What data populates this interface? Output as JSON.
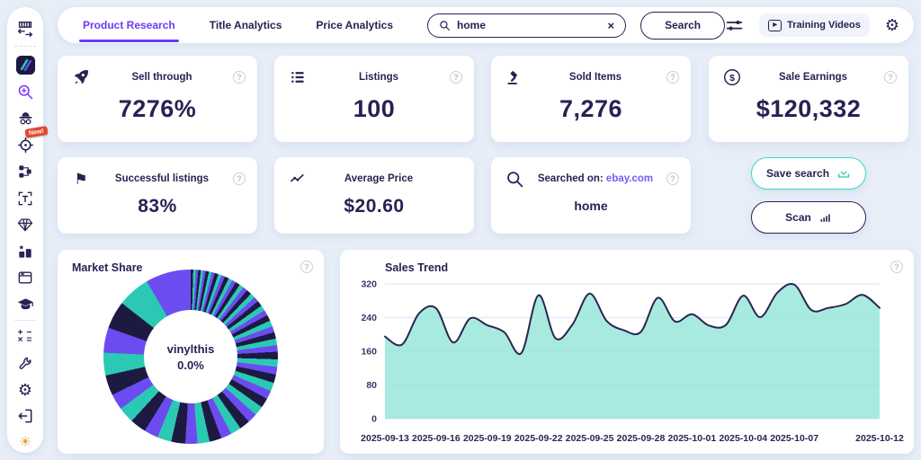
{
  "app": {
    "colors": {
      "background": "#E7EEF8",
      "navy": "#262353",
      "purple_accent": "#6C3BF5",
      "teal_accent": "#2BC9B4",
      "badge_red": "#E2492F",
      "link_purple": "#7A5AF8"
    }
  },
  "sidebar": {
    "new_badge": "New!",
    "items": [
      {
        "icon": "storefront-expand-icon"
      },
      {
        "icon": "zik-logo"
      },
      {
        "icon": "product-research-icon"
      },
      {
        "icon": "competitor-research-icon"
      },
      {
        "icon": "target-icon",
        "badge": "New!"
      },
      {
        "icon": "category-flow-icon"
      },
      {
        "icon": "title-builder-icon"
      },
      {
        "icon": "gem-icon"
      },
      {
        "icon": "best-sellers-icon"
      },
      {
        "icon": "browser-icon"
      },
      {
        "icon": "academy-icon"
      },
      {
        "icon": "calculator-icon"
      },
      {
        "icon": "tools-icon"
      },
      {
        "icon": "settings-icon"
      },
      {
        "icon": "logout-icon"
      },
      {
        "icon": "theme-sun-icon"
      }
    ]
  },
  "topbar": {
    "tabs": [
      {
        "label": "Product Research",
        "active": true
      },
      {
        "label": "Title Analytics",
        "active": false
      },
      {
        "label": "Price Analytics",
        "active": false
      }
    ],
    "search": {
      "value": "home"
    },
    "search_button": "Search",
    "training_videos": "Training Videos"
  },
  "stats": [
    {
      "icon": "rocket-icon",
      "title": "Sell through",
      "value": "7276%",
      "help": true
    },
    {
      "icon": "listings-icon",
      "title": "Listings",
      "value": "100",
      "help": true
    },
    {
      "icon": "gavel-icon",
      "title": "Sold Items",
      "value": "7,276",
      "help": true
    },
    {
      "icon": "dollar-icon",
      "title": "Sale Earnings",
      "value": "$120,332",
      "help": true
    },
    {
      "icon": "flag-icon",
      "title": "Successful listings",
      "value": "83%",
      "help": true
    },
    {
      "icon": "trend-icon",
      "title": "Average Price",
      "value": "$20.60",
      "help": false
    },
    {
      "icon": "magnifier-icon",
      "title": "Searched on:",
      "link": "ebay.com",
      "value": "home",
      "help": true
    }
  ],
  "actions": {
    "save_search": "Save search",
    "scan": "Scan"
  },
  "chart_data": [
    {
      "type": "pie",
      "subtype": "donut",
      "title": "Market Share",
      "center_label": "vinylthis",
      "center_value": "0.0%",
      "palette": [
        "#1D1A42",
        "#2BC9B4",
        "#6C4CF1"
      ],
      "segments": [
        0.5,
        0.5,
        0.5,
        0.5,
        0.5,
        0.5,
        0.6,
        0.6,
        0.6,
        0.7,
        0.7,
        0.7,
        0.8,
        0.8,
        0.8,
        0.9,
        0.9,
        0.9,
        1.0,
        1.0,
        1.0,
        1.1,
        1.1,
        1.1,
        1.2,
        1.2,
        1.2,
        1.3,
        1.3,
        1.3,
        1.5,
        1.5,
        1.5,
        1.7,
        1.7,
        1.7,
        1.9,
        1.9,
        1.9,
        2.1,
        2.1,
        2.1,
        2.4,
        2.4,
        2.4,
        2.8,
        2.8,
        2.8,
        3.2,
        3.2,
        3.2,
        4.0,
        4.5,
        5.0,
        5.5,
        6.5,
        9.0
      ]
    },
    {
      "type": "area",
      "title": "Sales Trend",
      "x": [
        "2025-09-13",
        "2025-09-14",
        "2025-09-15",
        "2025-09-16",
        "2025-09-17",
        "2025-09-18",
        "2025-09-19",
        "2025-09-20",
        "2025-09-21",
        "2025-09-22",
        "2025-09-23",
        "2025-09-24",
        "2025-09-25",
        "2025-09-26",
        "2025-09-27",
        "2025-09-28",
        "2025-09-29",
        "2025-09-30",
        "2025-10-01",
        "2025-10-02",
        "2025-10-03",
        "2025-10-04",
        "2025-10-05",
        "2025-10-06",
        "2025-10-07",
        "2025-10-08",
        "2025-10-09",
        "2025-10-10",
        "2025-10-11",
        "2025-10-12"
      ],
      "values": [
        195,
        176,
        250,
        262,
        181,
        238,
        222,
        205,
        156,
        293,
        191,
        224,
        297,
        232,
        210,
        206,
        287,
        231,
        248,
        221,
        223,
        292,
        241,
        299,
        318,
        258,
        263,
        272,
        294,
        263
      ],
      "x_tick_labels": [
        "2025-09-13",
        "2025-09-16",
        "2025-09-19",
        "2025-09-22",
        "2025-09-25",
        "2025-09-28",
        "2025-10-01",
        "2025-10-04",
        "2025-10-07",
        "2025-10-12"
      ],
      "x_tick_days": [
        0,
        3,
        6,
        9,
        12,
        15,
        18,
        21,
        24,
        29
      ],
      "yticks": [
        0,
        80,
        160,
        240,
        320
      ],
      "ylim": [
        0,
        320
      ],
      "grid": true,
      "legend": false,
      "line_color": "#2A2550",
      "fill_color": "#8CE3D6",
      "fill_opacity": 0.75,
      "grid_color": "#D9EAF6"
    }
  ]
}
